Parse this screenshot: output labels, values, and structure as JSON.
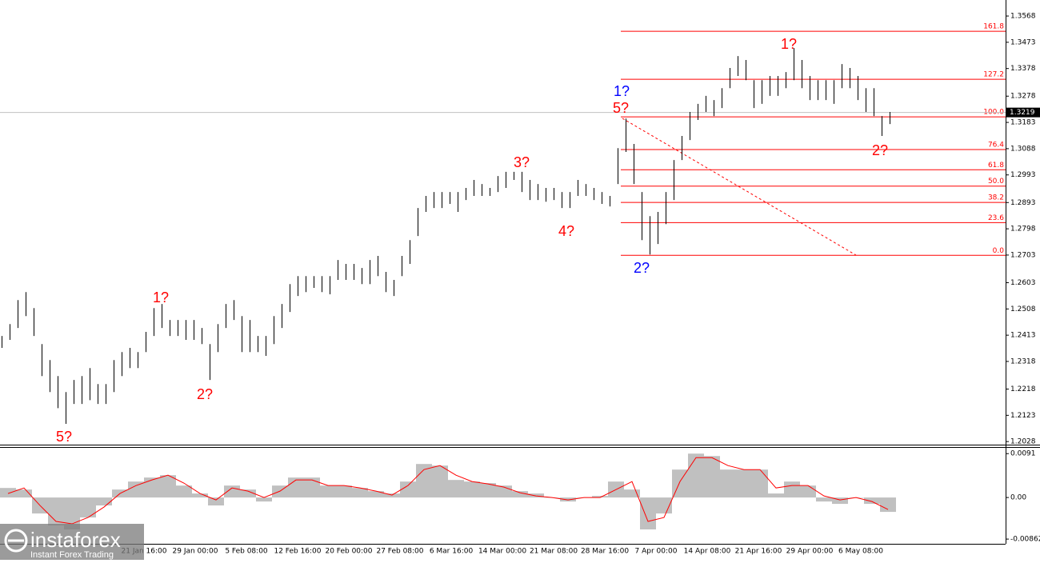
{
  "chart_data": [
    {
      "type": "price-bars",
      "ylim": [
        1.2014,
        1.3626
      ],
      "yticks": [
        1.3568,
        1.3473,
        1.3378,
        1.3278,
        1.3183,
        1.3088,
        1.2993,
        1.2893,
        1.2798,
        1.2703,
        1.2603,
        1.2508,
        1.2413,
        1.2318,
        1.2218,
        1.2123,
        1.2028
      ],
      "color": "#000000",
      "high": [
        1.241,
        1.2453,
        1.254,
        1.2569,
        1.2511,
        1.2381,
        1.2323,
        1.2265,
        1.2207,
        1.2251,
        1.2265,
        1.2294,
        1.2236,
        1.2236,
        1.2323,
        1.2352,
        1.2367,
        1.2352,
        1.2425,
        1.2511,
        1.2526,
        1.2468,
        1.2468,
        1.2468,
        1.2468,
        1.2439,
        1.2381,
        1.2453,
        1.2526,
        1.254,
        1.2482,
        1.2468,
        1.241,
        1.241,
        1.2482,
        1.2526,
        1.2598,
        1.2627,
        1.2627,
        1.2627,
        1.2627,
        1.2627,
        1.2685,
        1.2671,
        1.2671,
        1.2656,
        1.2685,
        1.27,
        1.2642,
        1.2613,
        1.27,
        1.2757,
        1.2873,
        1.2917,
        1.2931,
        1.2931,
        1.2931,
        1.2931,
        1.2946,
        1.2975,
        1.296,
        1.2946,
        1.2989,
        1.3004,
        1.3004,
        1.3004,
        1.2975,
        1.296,
        1.2946,
        1.2946,
        1.2931,
        1.2931,
        1.2975,
        1.296,
        1.2946,
        1.2931,
        1.2917,
        1.309,
        1.3197,
        1.3105,
        1.2931,
        1.2844,
        1.2859,
        1.2931,
        1.3047,
        1.3134,
        1.3221,
        1.325,
        1.3279,
        1.3264,
        1.3307,
        1.338,
        1.3423,
        1.3409,
        1.3336,
        1.3336,
        1.3351,
        1.3351,
        1.3365,
        1.3452,
        1.3409,
        1.3351,
        1.3336,
        1.3336,
        1.3336,
        1.3394,
        1.338,
        1.3351,
        1.3307,
        1.3307,
        1.3206,
        1.3221
      ],
      "low": [
        1.2367,
        1.2396,
        1.2439,
        1.2482,
        1.241,
        1.2265,
        1.2207,
        1.2149,
        1.2092,
        1.2164,
        1.2164,
        1.2178,
        1.2164,
        1.2164,
        1.2207,
        1.2265,
        1.2294,
        1.2294,
        1.2352,
        1.241,
        1.2439,
        1.241,
        1.241,
        1.2396,
        1.2396,
        1.2381,
        1.2251,
        1.2352,
        1.2439,
        1.2468,
        1.2352,
        1.2352,
        1.2352,
        1.2338,
        1.2381,
        1.2439,
        1.2497,
        1.2555,
        1.2569,
        1.2584,
        1.2569,
        1.2561,
        1.2613,
        1.2613,
        1.2613,
        1.2598,
        1.2598,
        1.2627,
        1.2569,
        1.2555,
        1.2627,
        1.2671,
        1.2772,
        1.2859,
        1.2873,
        1.2873,
        1.2888,
        1.2859,
        1.2902,
        1.2917,
        1.2917,
        1.2917,
        1.2931,
        1.2946,
        1.2975,
        1.2931,
        1.2902,
        1.2902,
        1.2896,
        1.2902,
        1.2873,
        1.2873,
        1.2917,
        1.2917,
        1.2902,
        1.2888,
        1.2879,
        1.296,
        1.3076,
        1.296,
        1.2757,
        1.2705,
        1.2743,
        1.2815,
        1.2902,
        1.3047,
        1.3119,
        1.3192,
        1.3221,
        1.3206,
        1.3235,
        1.3307,
        1.3351,
        1.3336,
        1.3235,
        1.325,
        1.3279,
        1.3279,
        1.3307,
        1.3336,
        1.3307,
        1.3264,
        1.3264,
        1.3264,
        1.325,
        1.3307,
        1.3307,
        1.3264,
        1.3221,
        1.3206,
        1.3134,
        1.3177
      ],
      "x_labels": [
        "21 Jan 16:00",
        "29 Jan 00:00",
        "5 Feb 08:00",
        "12 Feb 16:00",
        "20 Feb 00:00",
        "27 Feb 08:00",
        "6 Mar 16:00",
        "14 Mar 00:00",
        "21 Mar 08:00",
        "28 Mar 16:00",
        "7 Apr 00:00",
        "14 Apr 08:00",
        "21 Apr 16:00",
        "29 Apr 00:00",
        "6 May 08:00"
      ],
      "current_price": {
        "value": 1.3219,
        "color": "#c0c0c0"
      },
      "fib": {
        "low": 1.2702,
        "high": 1.3203,
        "color": "#ff0000",
        "levels": [
          161.8,
          127.2,
          {
            "value": 100,
            "label": "100.0"
          },
          76.4,
          61.8,
          {
            "value": 50,
            "label": "50.0"
          },
          38.2,
          23.6,
          {
            "value": 0,
            "label": "0.0"
          }
        ]
      },
      "annotations": [
        {
          "text": "5?",
          "color": "#ff0000"
        },
        {
          "text": "1?",
          "color": "#ff0000"
        },
        {
          "text": "2?",
          "color": "#ff0000"
        },
        {
          "text": "3?",
          "color": "#ff0000"
        },
        {
          "text": "4?",
          "color": "#ff0000"
        },
        {
          "text": "5?",
          "color": "#ff0000"
        },
        {
          "text": "1?",
          "color": "#0000ff"
        },
        {
          "text": "2?",
          "color": "#0000ff"
        },
        {
          "text": "1?",
          "color": "#ff0000"
        },
        {
          "text": "2?",
          "color": "#ff0000"
        }
      ]
    },
    {
      "type": "histogram-line",
      "ylim": [
        -0.0096,
        0.0103
      ],
      "yticks": [
        0.0091,
        {
          "value": 0,
          "label": "0.00"
        },
        -0.00862
      ],
      "histogram": {
        "color": "#c0c0c0",
        "values": [
          0.00198,
          0.00165,
          -0.00331,
          -0.00579,
          -0.00662,
          -0.00414,
          -0.00165,
          0.00165,
          0.00331,
          0.00414,
          0.00463,
          0.00248,
          0.00083,
          -0.00165,
          0.00248,
          0.00165,
          -0.00083,
          0.00248,
          0.00414,
          0.00414,
          0.00248,
          0.00248,
          0.00198,
          0.00132,
          0.00083,
          0.00331,
          0.00695,
          0.00662,
          0.00364,
          0.00331,
          0.00298,
          0.00248,
          0.00132,
          0.00083,
          0,
          -0.00083,
          0,
          0.00033,
          0.00331,
          0.00165,
          -0.00662,
          -0.00331,
          0.00579,
          0.0091,
          0.0086,
          0.00579,
          0.00579,
          0.00579,
          0.00083,
          0.00331,
          0.00248,
          -0.00083,
          -0.00132,
          0,
          -0.00132,
          -0.00298
        ]
      },
      "signal": {
        "color": "#ff0000",
        "values": [
          0.00083,
          0.00198,
          -0.00165,
          -0.00496,
          -0.00546,
          -0.00414,
          -0.00198,
          0.00083,
          0.00248,
          0.00364,
          0.00463,
          0.00298,
          0.00083,
          -0.0005,
          0.00198,
          0.00132,
          0,
          0.00132,
          0.00364,
          0.00364,
          0.00248,
          0.00248,
          0.00198,
          0.00132,
          0.0005,
          0.00248,
          0.00579,
          0.00662,
          0.00463,
          0.00331,
          0.00281,
          0.00215,
          0.00099,
          0.00033,
          0,
          -0.0005,
          0,
          0,
          0.00165,
          0.00331,
          -0.00496,
          -0.00414,
          0.00331,
          0.00827,
          0.00827,
          0.00662,
          0.00579,
          0.00579,
          0.00198,
          0.00248,
          0.00248,
          0.00033,
          -0.0005,
          0,
          -0.00083,
          -0.00248
        ]
      }
    }
  ],
  "logo": {
    "name": "instaforex",
    "tagline": "Instant Forex Trading"
  }
}
